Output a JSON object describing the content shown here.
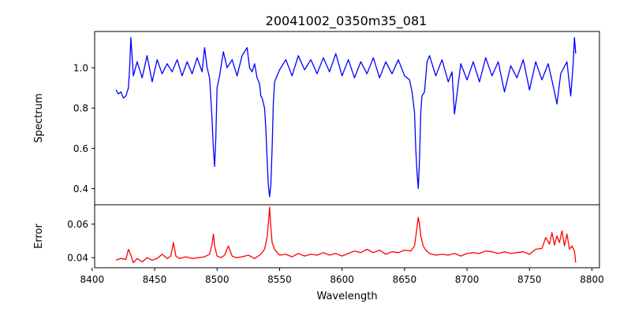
{
  "chart_data": {
    "type": "line",
    "title": "20041002_0350m35_081",
    "xlabel": "Wavelength",
    "xlim": [
      8402,
      8806
    ],
    "xticks": [
      8400,
      8450,
      8500,
      8550,
      8600,
      8650,
      8700,
      8750,
      8800
    ],
    "panels": [
      {
        "id": "spectrum",
        "ylabel": "Spectrum",
        "ylim": [
          0.32,
          1.18
        ],
        "yticks": [
          0.4,
          0.6,
          0.8,
          1.0
        ],
        "ytick_labels": [
          "0.4",
          "0.6",
          "0.8",
          "1.0"
        ],
        "grid": false,
        "series": [
          {
            "color": "#0000ff",
            "x": [
              8419,
              8421,
              8423,
              8425,
              8427,
              8429,
              8430,
              8431,
              8433,
              8436,
              8440,
              8444,
              8448,
              8452,
              8456,
              8460,
              8464,
              8468,
              8472,
              8476,
              8480,
              8484,
              8488,
              8490,
              8492,
              8494,
              8495,
              8496,
              8497,
              8498,
              8499,
              8500,
              8502,
              8505,
              8508,
              8512,
              8516,
              8520,
              8524,
              8526,
              8528,
              8530,
              8532,
              8534,
              8535,
              8536,
              8538,
              8539,
              8540,
              8541,
              8542,
              8543,
              8544,
              8545,
              8546,
              8548,
              8550,
              8555,
              8560,
              8565,
              8570,
              8575,
              8580,
              8585,
              8590,
              8595,
              8600,
              8605,
              8610,
              8615,
              8620,
              8625,
              8630,
              8635,
              8640,
              8645,
              8650,
              8654,
              8656,
              8658,
              8659,
              8660,
              8661,
              8662,
              8663,
              8664,
              8666,
              8668,
              8670,
              8675,
              8680,
              8685,
              8688,
              8690,
              8695,
              8700,
              8705,
              8710,
              8715,
              8720,
              8725,
              8730,
              8735,
              8740,
              8745,
              8750,
              8755,
              8760,
              8765,
              8770,
              8772,
              8775,
              8780,
              8783,
              8785,
              8786,
              8787
            ],
            "y": [
              0.89,
              0.87,
              0.88,
              0.85,
              0.86,
              0.9,
              1.0,
              1.15,
              0.96,
              1.03,
              0.95,
              1.06,
              0.93,
              1.04,
              0.97,
              1.02,
              0.98,
              1.04,
              0.96,
              1.03,
              0.97,
              1.05,
              0.98,
              1.1,
              1.0,
              0.95,
              0.85,
              0.74,
              0.6,
              0.51,
              0.66,
              0.9,
              0.96,
              1.08,
              1.0,
              1.04,
              0.96,
              1.06,
              1.1,
              1.0,
              0.98,
              1.02,
              0.95,
              0.92,
              0.86,
              0.85,
              0.8,
              0.7,
              0.55,
              0.42,
              0.36,
              0.42,
              0.6,
              0.82,
              0.93,
              0.96,
              0.99,
              1.04,
              0.96,
              1.06,
              0.99,
              1.04,
              0.97,
              1.05,
              0.98,
              1.07,
              0.96,
              1.04,
              0.95,
              1.03,
              0.97,
              1.05,
              0.95,
              1.03,
              0.97,
              1.04,
              0.96,
              0.94,
              0.88,
              0.78,
              0.6,
              0.48,
              0.4,
              0.55,
              0.78,
              0.86,
              0.88,
              1.03,
              1.06,
              0.96,
              1.04,
              0.93,
              0.98,
              0.77,
              1.02,
              0.94,
              1.03,
              0.93,
              1.05,
              0.96,
              1.03,
              0.88,
              1.01,
              0.95,
              1.04,
              0.89,
              1.03,
              0.94,
              1.02,
              0.88,
              0.82,
              0.97,
              1.03,
              0.86,
              1.02,
              1.15,
              1.07
            ]
          }
        ]
      },
      {
        "id": "error",
        "ylabel": "Error",
        "ylim": [
          0.034,
          0.0715
        ],
        "yticks": [
          0.04,
          0.06
        ],
        "ytick_labels": [
          "0.04",
          "0.06"
        ],
        "grid": false,
        "series": [
          {
            "color": "#ff0000",
            "x": [
              8419,
              8423,
              8427,
              8429,
              8431,
              8433,
              8436,
              8440,
              8444,
              8448,
              8452,
              8456,
              8460,
              8463,
              8465,
              8467,
              8470,
              8475,
              8480,
              8485,
              8490,
              8494,
              8496,
              8497,
              8498,
              8500,
              8503,
              8506,
              8509,
              8512,
              8515,
              8520,
              8525,
              8530,
              8535,
              8538,
              8540,
              8541,
              8542,
              8543,
              8544,
              8546,
              8548,
              8550,
              8555,
              8560,
              8565,
              8570,
              8575,
              8580,
              8585,
              8590,
              8595,
              8600,
              8605,
              8610,
              8615,
              8620,
              8625,
              8630,
              8635,
              8640,
              8645,
              8650,
              8655,
              8658,
              8660,
              8661,
              8662,
              8663,
              8665,
              8667,
              8670,
              8675,
              8680,
              8685,
              8690,
              8695,
              8700,
              8705,
              8710,
              8715,
              8720,
              8725,
              8730,
              8735,
              8740,
              8745,
              8750,
              8755,
              8760,
              8763,
              8766,
              8768,
              8770,
              8772,
              8774,
              8776,
              8778,
              8780,
              8782,
              8784,
              8786,
              8787
            ],
            "y": [
              0.0385,
              0.0395,
              0.039,
              0.045,
              0.0415,
              0.037,
              0.0395,
              0.0375,
              0.04,
              0.0385,
              0.0395,
              0.042,
              0.0395,
              0.041,
              0.049,
              0.041,
              0.0395,
              0.0405,
              0.0395,
              0.04,
              0.0405,
              0.042,
              0.048,
              0.054,
              0.047,
              0.041,
              0.04,
              0.0415,
              0.047,
              0.041,
              0.04,
              0.0405,
              0.0415,
              0.0395,
              0.042,
              0.045,
              0.052,
              0.06,
              0.07,
              0.058,
              0.049,
              0.045,
              0.043,
              0.0415,
              0.042,
              0.0405,
              0.0425,
              0.041,
              0.042,
              0.0415,
              0.043,
              0.0415,
              0.0425,
              0.041,
              0.0425,
              0.044,
              0.043,
              0.045,
              0.043,
              0.0445,
              0.042,
              0.0435,
              0.043,
              0.0445,
              0.044,
              0.047,
              0.058,
              0.064,
              0.06,
              0.053,
              0.047,
              0.0445,
              0.0425,
              0.0415,
              0.042,
              0.0415,
              0.0425,
              0.041,
              0.0425,
              0.043,
              0.0425,
              0.044,
              0.0435,
              0.0425,
              0.0435,
              0.0425,
              0.043,
              0.0435,
              0.042,
              0.045,
              0.0455,
              0.052,
              0.048,
              0.055,
              0.0475,
              0.053,
              0.049,
              0.056,
              0.047,
              0.054,
              0.045,
              0.047,
              0.044,
              0.037
            ]
          }
        ]
      }
    ]
  }
}
